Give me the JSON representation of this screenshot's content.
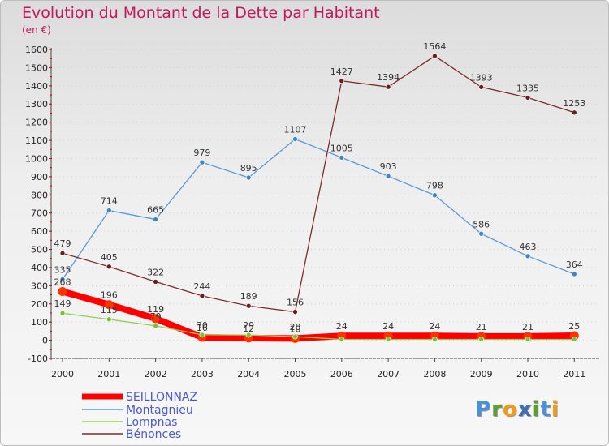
{
  "title": "Evolution du Montant de la Dette par Habitant",
  "unit": "(en €)",
  "logo": {
    "text": "Proxiti",
    "letters": [
      {
        "ch": "P",
        "color": "#4a90d9"
      },
      {
        "ch": "r",
        "color": "#5aa02c"
      },
      {
        "ch": "o",
        "color": "#f39c12"
      },
      {
        "ch": "x",
        "color": "#3b6fb6"
      },
      {
        "ch": "i",
        "color": "#5aa02c"
      },
      {
        "ch": "t",
        "color": "#4a90d9"
      },
      {
        "ch": "i",
        "color": "#f39c12"
      }
    ]
  },
  "chart_data": {
    "type": "line",
    "x": [
      "2000",
      "2001",
      "2002",
      "2003",
      "2004",
      "2005",
      "2006",
      "2007",
      "2008",
      "2009",
      "2010",
      "2011"
    ],
    "ylim": [
      -100,
      1600
    ],
    "yticks": [
      -100,
      0,
      100,
      200,
      300,
      400,
      500,
      600,
      700,
      800,
      900,
      1000,
      1100,
      1200,
      1300,
      1400,
      1500,
      1600
    ],
    "grid": false,
    "legend_position": "bottom-left",
    "series": [
      {
        "name": "SEILLONNAZ",
        "color": "#ff0000",
        "marker": "#ff3300",
        "values": [
          268,
          196,
          119,
          16,
          12,
          10,
          24,
          24,
          24,
          21,
          21,
          25
        ],
        "labels": [
          "268",
          "196",
          "119",
          "16",
          "12",
          "10",
          "24",
          "24",
          "24",
          "21",
          "21",
          "25"
        ]
      },
      {
        "name": "Montagnieu",
        "color": "#5b9bd5",
        "marker": "#3f87c4",
        "values": [
          335,
          714,
          665,
          979,
          895,
          1107,
          1005,
          903,
          798,
          586,
          463,
          364
        ],
        "labels": [
          "335",
          "714",
          "665",
          "979",
          "895",
          "1107",
          "1005",
          "903",
          "798",
          "586",
          "463",
          "364"
        ]
      },
      {
        "name": "Lompnas",
        "color": "#90d050",
        "marker": "#7cc236",
        "values": [
          149,
          115,
          79,
          30,
          29,
          20,
          5,
          5,
          5,
          5,
          5,
          5
        ],
        "labels": [
          "149",
          "115",
          "79",
          "30",
          "29",
          "20",
          "",
          "",
          "",
          "",
          "",
          ""
        ]
      },
      {
        "name": "Bénonces",
        "color": "#7b2c2c",
        "marker": "#6a1f1f",
        "values": [
          479,
          405,
          322,
          244,
          189,
          156,
          1427,
          1394,
          1564,
          1393,
          1335,
          1253
        ],
        "labels": [
          "479",
          "405",
          "322",
          "244",
          "189",
          "156",
          "1427",
          "1394",
          "1564",
          "1393",
          "1335",
          "1253"
        ]
      }
    ]
  }
}
